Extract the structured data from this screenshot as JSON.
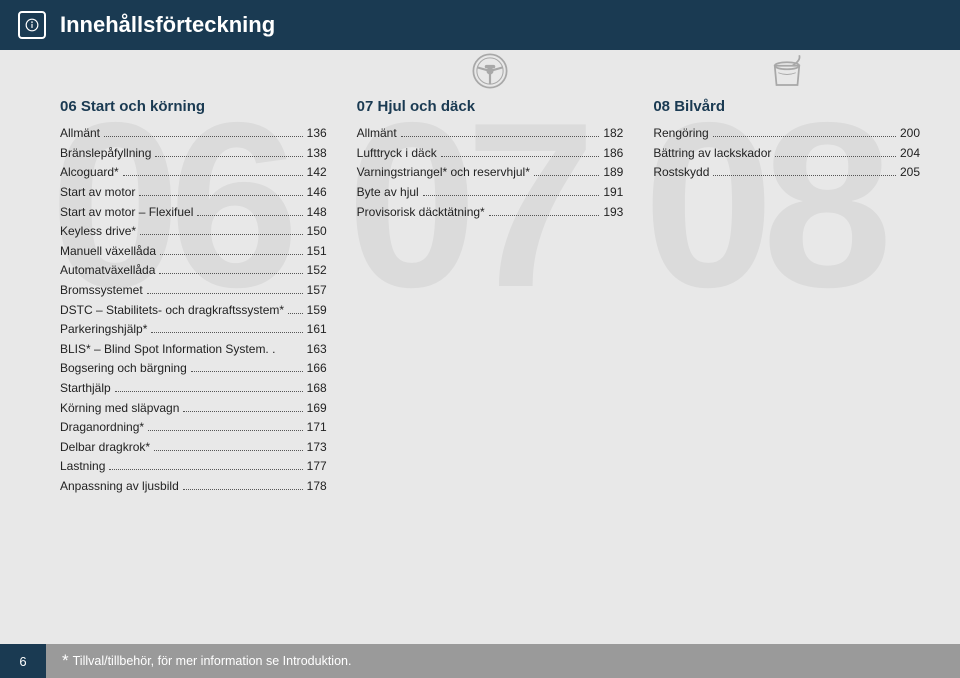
{
  "header": {
    "title": "Innehållsförteckning"
  },
  "footer": {
    "page": "6",
    "note": "Tillval/tillbehör, för mer information se Introduktion."
  },
  "columns": [
    {
      "bg": "06",
      "title": "06 Start och körning",
      "showWheel": false,
      "items": [
        {
          "label": "Allmänt",
          "page": "136"
        },
        {
          "label": "Bränslepåfyllning",
          "page": "138"
        },
        {
          "label": "Alcoguard*",
          "page": "142"
        },
        {
          "label": "Start av motor",
          "page": "146"
        },
        {
          "label": "Start av motor – Flexifuel",
          "page": "148"
        },
        {
          "label": "Keyless drive*",
          "page": "150"
        },
        {
          "label": "Manuell växellåda",
          "page": "151"
        },
        {
          "label": "Automatväxellåda",
          "page": "152"
        },
        {
          "label": "Bromssystemet",
          "page": "157"
        },
        {
          "label": "DSTC – Stabilitets- och dragkraftssystem*",
          "page": "159"
        },
        {
          "label": "Parkeringshjälp*",
          "page": "161"
        },
        {
          "label": "BLIS* – Blind Spot Information System. .",
          "page": "163",
          "nodots": true
        },
        {
          "label": "Bogsering och bärgning",
          "page": "166"
        },
        {
          "label": "Starthjälp",
          "page": "168"
        },
        {
          "label": "Körning med släpvagn",
          "page": "169"
        },
        {
          "label": "Draganordning*",
          "page": "171"
        },
        {
          "label": "Delbar dragkrok*",
          "page": "173"
        },
        {
          "label": "Lastning",
          "page": "177"
        },
        {
          "label": "Anpassning av ljusbild",
          "page": "178"
        }
      ]
    },
    {
      "bg": "07",
      "title": "07 Hjul och däck",
      "showWheel": true,
      "wheelType": "steering",
      "items": [
        {
          "label": "Allmänt",
          "page": "182"
        },
        {
          "label": "Lufttryck i däck",
          "page": "186"
        },
        {
          "label": "Varningstriangel* och reservhjul*",
          "page": "189"
        },
        {
          "label": "Byte av hjul",
          "page": "191"
        },
        {
          "label": "Provisorisk däcktätning*",
          "page": "193"
        }
      ]
    },
    {
      "bg": "08",
      "title": "08 Bilvård",
      "showWheel": true,
      "wheelType": "bucket",
      "items": [
        {
          "label": "Rengöring",
          "page": "200"
        },
        {
          "label": "Bättring av lackskador",
          "page": "204"
        },
        {
          "label": "Rostskydd",
          "page": "205"
        }
      ]
    }
  ]
}
